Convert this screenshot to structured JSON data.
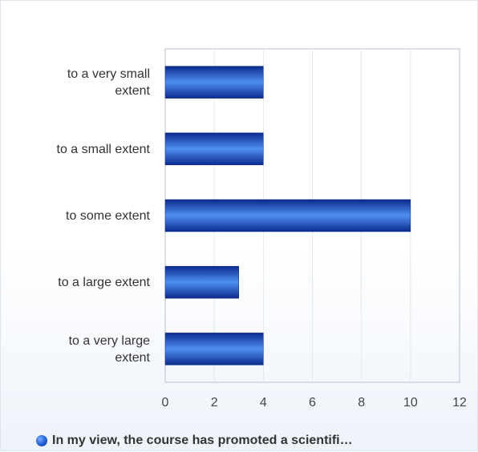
{
  "chart_data": {
    "type": "bar",
    "orientation": "horizontal",
    "categories": [
      [
        "to a very small",
        "extent"
      ],
      [
        "to a small extent"
      ],
      [
        "to some extent"
      ],
      [
        "to a large extent"
      ],
      [
        "to a very large",
        "extent"
      ]
    ],
    "series": [
      {
        "name": "In my view, the course has promoted a scientifi…",
        "values": [
          4,
          4,
          10,
          3,
          4
        ]
      }
    ],
    "xlim": [
      0,
      12
    ],
    "xticks": [
      "0",
      "2",
      "4",
      "6",
      "8",
      "10",
      "12"
    ],
    "grid": true,
    "legend_position": "bottom",
    "colors": {
      "bar_dark": "#0a2a8c",
      "bar_light": "#4f8ff2",
      "grid": "#e3e8ef",
      "plot_border": "#b8c2d0"
    }
  },
  "legend": {
    "label": "In my view, the course has promoted a scientifi…"
  }
}
